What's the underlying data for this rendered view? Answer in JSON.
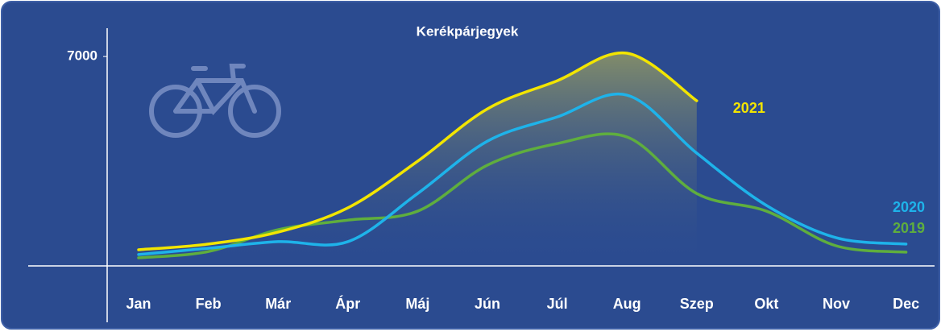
{
  "chart_data": {
    "type": "line",
    "title": "Kerékpárjegyek",
    "categories": [
      "Jan",
      "Feb",
      "Már",
      "Ápr",
      "Máj",
      "Jún",
      "Júl",
      "Aug",
      "Szep",
      "Okt",
      "Nov",
      "Dec"
    ],
    "series": [
      {
        "name": "2019",
        "color": "#5fae3e",
        "values": [
          270,
          480,
          1210,
          1530,
          1830,
          3370,
          4090,
          4310,
          2420,
          1830,
          670,
          460
        ]
      },
      {
        "name": "2020",
        "color": "#1eb3ea",
        "values": [
          380,
          590,
          810,
          810,
          2420,
          4170,
          4980,
          5710,
          3770,
          2020,
          940,
          730
        ]
      },
      {
        "name": "2021",
        "color": "#f2e500",
        "values": [
          540,
          730,
          1130,
          1940,
          3500,
          5250,
          6190,
          7110,
          5520,
          null,
          null,
          null
        ]
      }
    ],
    "ylim": [
      0,
      8000
    ],
    "yticks": [
      7000
    ]
  }
}
